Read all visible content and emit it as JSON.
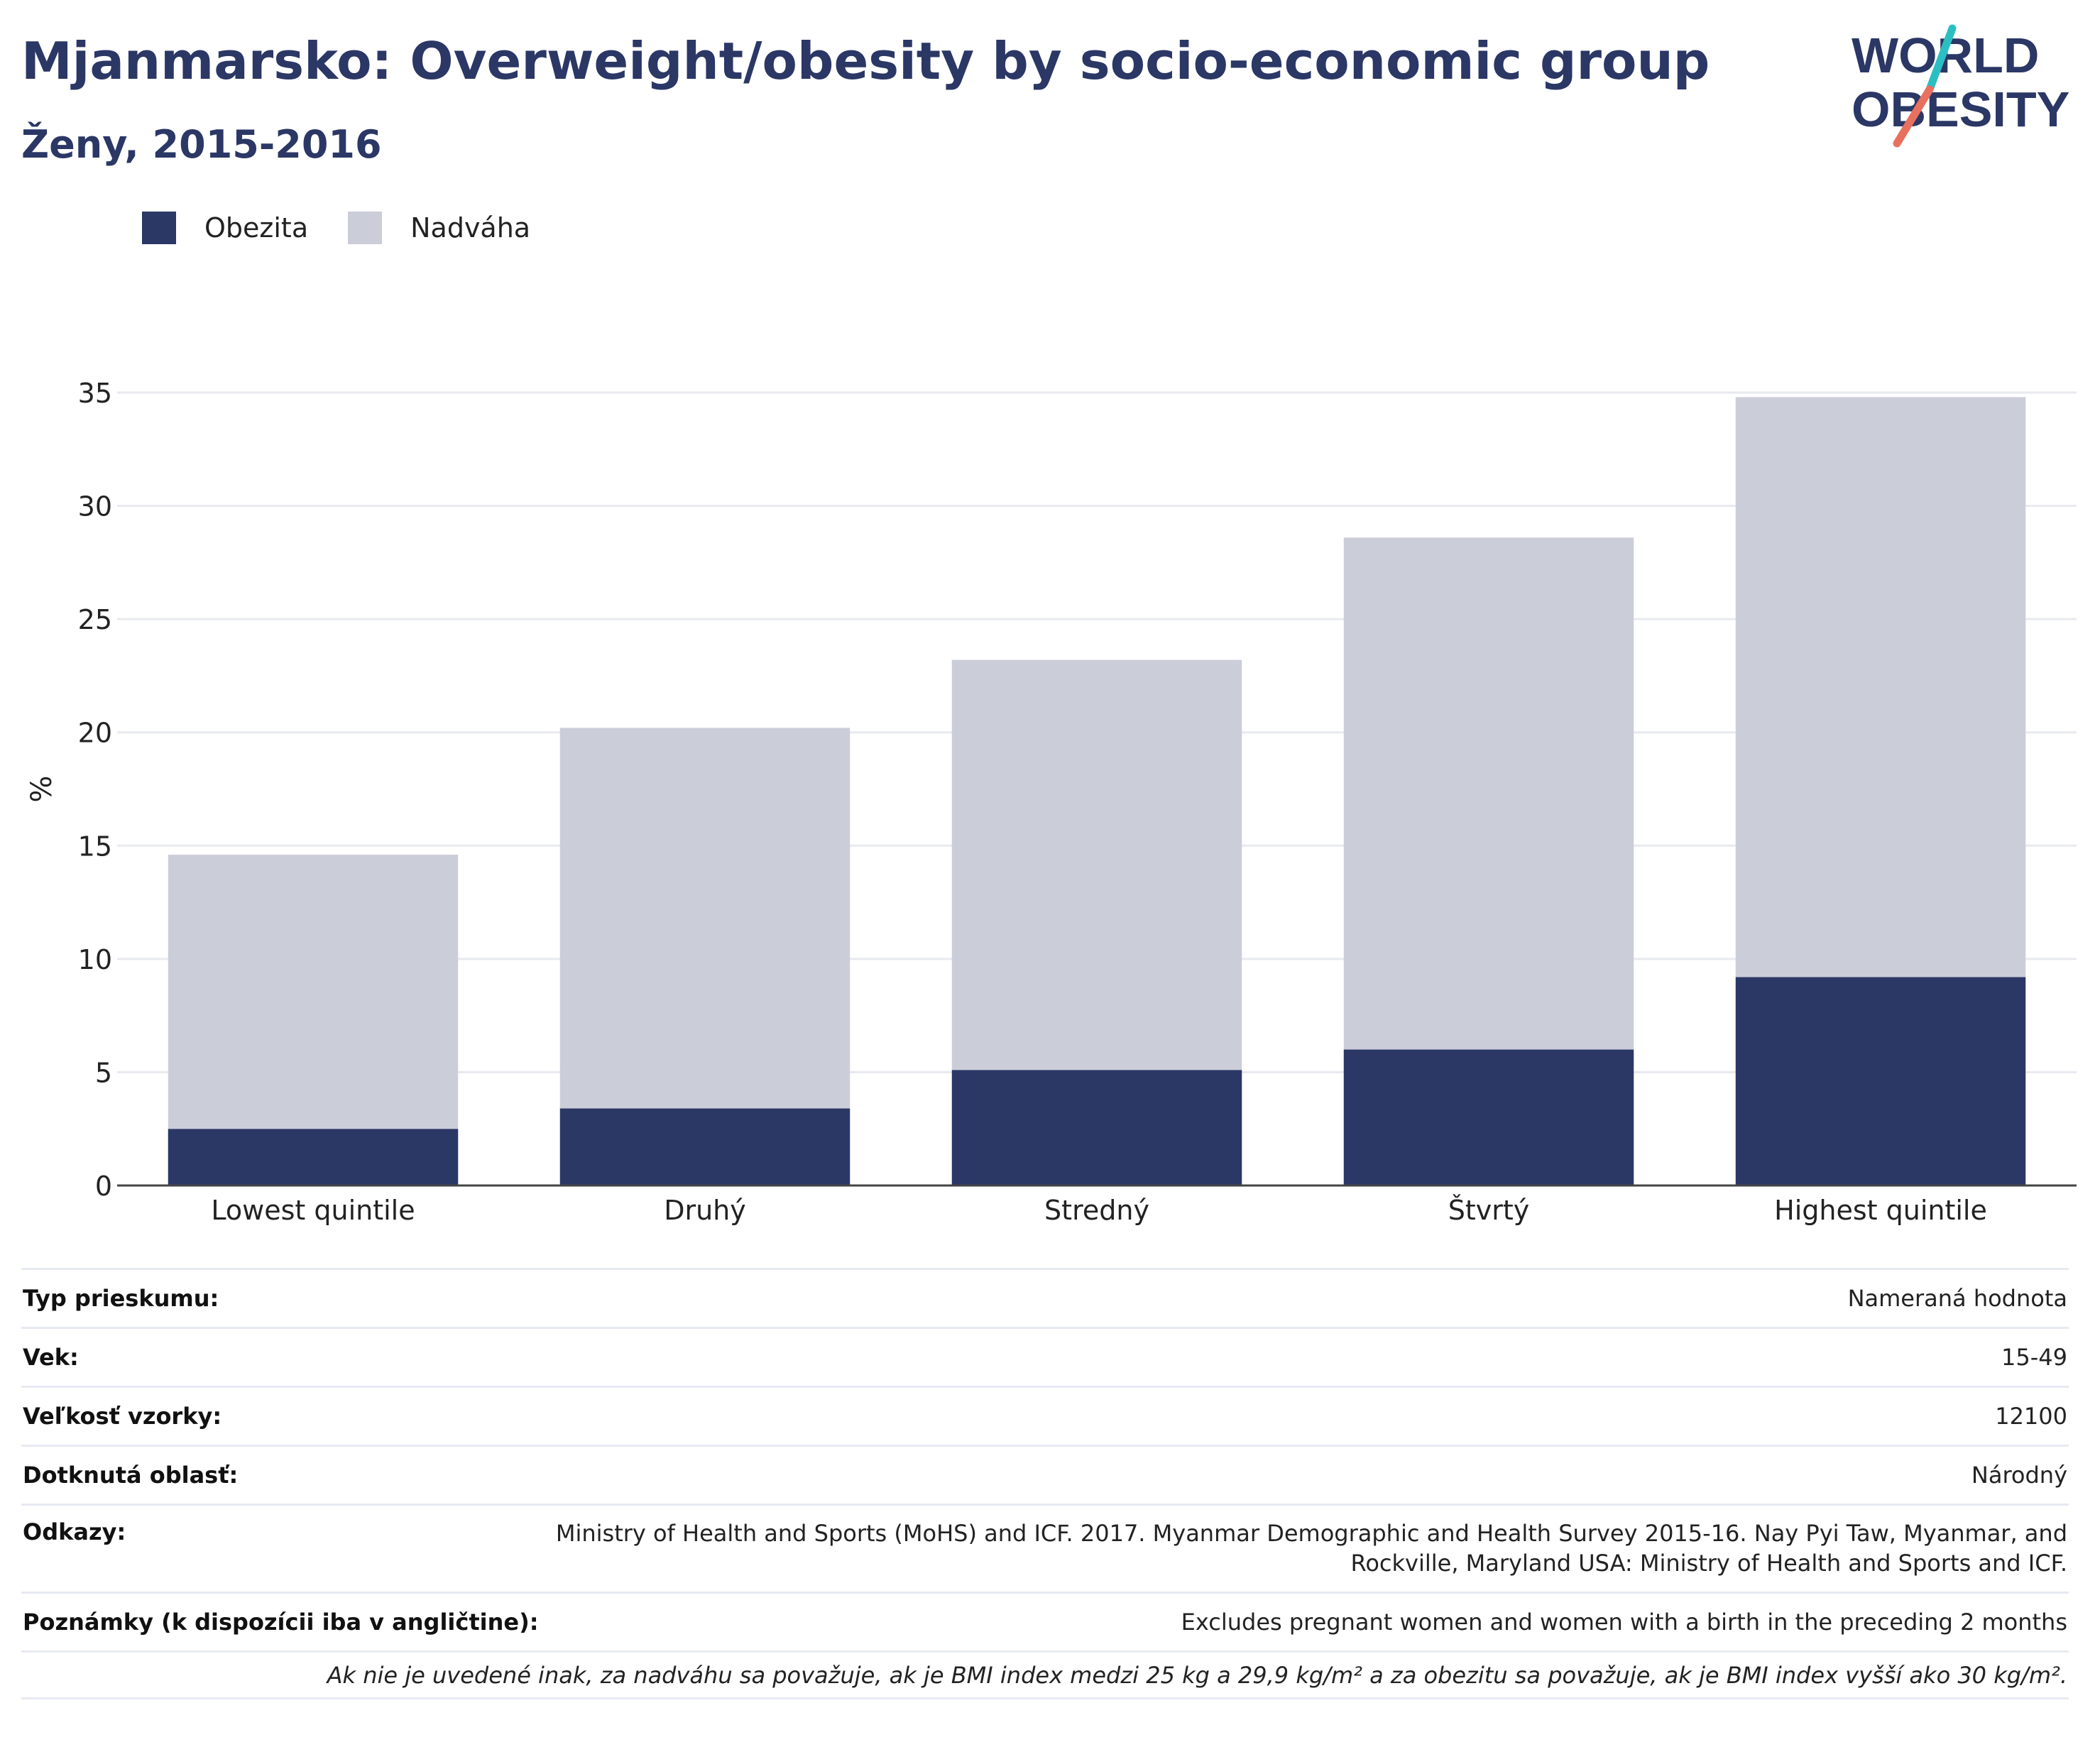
{
  "header": {
    "title": "Mjanmarsko: Overweight/obesity by socio-economic group",
    "subtitle": "Ženy, 2015-2016",
    "logo_line1": "WORLD",
    "logo_line2": "OBESITY"
  },
  "colors": {
    "obesity": "#2b3765",
    "overweight": "#cbcdd9",
    "title": "#2b3765",
    "logo_teal": "#2bbfc4",
    "logo_coral": "#e8705f"
  },
  "chart_data": {
    "type": "bar",
    "stacked": true,
    "categories": [
      "Lowest quintile",
      "Druhý",
      "Stredný",
      "Štvrtý",
      "Highest quintile"
    ],
    "series": [
      {
        "name": "Obezita",
        "values": [
          2.5,
          3.4,
          5.1,
          6.0,
          9.2
        ]
      },
      {
        "name": "Nadváha",
        "values": [
          12.1,
          16.8,
          18.1,
          22.6,
          25.6
        ]
      }
    ],
    "totals": [
      14.6,
      20.2,
      23.2,
      28.6,
      34.8
    ],
    "ylabel": "%",
    "xlabel": "",
    "ylim": [
      0,
      35
    ],
    "yticks": [
      0,
      5,
      10,
      15,
      20,
      25,
      30,
      35
    ],
    "grid": true,
    "legend_position": "top-left"
  },
  "info": {
    "survey_type_label": "Typ prieskumu:",
    "survey_type_value": "Nameraná hodnota",
    "age_label": "Vek:",
    "age_value": "15-49",
    "sample_label": "Veľkosť vzorky:",
    "sample_value": "12100",
    "area_label": "Dotknutá oblasť:",
    "area_value": "Národný",
    "refs_label": "Odkazy:",
    "refs_value_line1": "Ministry of Health and Sports (MoHS) and ICF. 2017. Myanmar Demographic and Health Survey 2015-16. Nay Pyi Taw, Myanmar, and",
    "refs_value_line2": "Rockville, Maryland USA: Ministry of Health and Sports and ICF.",
    "notes_label": "Poznámky (k dispozícii iba v angličtine):",
    "notes_value": "Excludes pregnant women and women with a birth in the preceding 2 months",
    "footnote": "Ak nie je uvedené inak, za nadváhu sa považuje, ak je BMI index medzi 25 kg a 29,9 kg/m² a za obezitu sa považuje, ak je BMI index vyšší ako 30 kg/m²."
  }
}
